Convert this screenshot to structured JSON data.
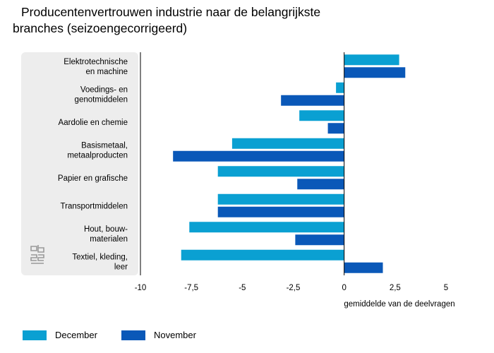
{
  "title": {
    "line1": "Producentenvertrouwen industrie naar de belangrijkste",
    "line2": "branches (seizoengecorrigeerd)"
  },
  "colors": {
    "december": "#0aa0d2",
    "november": "#0a58b8",
    "panel": "#ededed"
  },
  "chart_data": {
    "type": "bar",
    "orientation": "horizontal",
    "title": "Producentenvertrouwen industrie naar de belangrijkste branches (seizoengecorrigeerd)",
    "xlabel": "gemiddelde van de deelvragen",
    "xlim": [
      -10,
      5
    ],
    "xticks": [
      -10,
      -7.5,
      -5,
      -2.5,
      0,
      2.5,
      5
    ],
    "xtick_labels": [
      "-10",
      "-7,5",
      "-5",
      "-2,5",
      "0",
      "2,5",
      "5"
    ],
    "categories": [
      [
        "Elektrotechnische",
        "en machine"
      ],
      [
        "Voedings- en",
        "genotmiddelen"
      ],
      [
        "Aardolie en chemie"
      ],
      [
        "Basismetaal,",
        "metaalproducten"
      ],
      [
        "Papier en grafische"
      ],
      [
        "Transportmiddelen"
      ],
      [
        "Hout, bouw-",
        "materialen"
      ],
      [
        "Textiel, kleding,",
        "leer"
      ]
    ],
    "series": [
      {
        "name": "December",
        "values": [
          2.7,
          -0.4,
          -2.2,
          -5.5,
          -6.2,
          -6.2,
          -7.6,
          -8.0
        ]
      },
      {
        "name": "November",
        "values": [
          3.0,
          -3.1,
          -0.8,
          -8.4,
          -2.3,
          -6.2,
          -2.4,
          1.9
        ]
      }
    ],
    "legend_position": "bottom-left",
    "grid": false
  },
  "legend": {
    "december": "December",
    "november": "November"
  },
  "logo": "cbs-logo"
}
